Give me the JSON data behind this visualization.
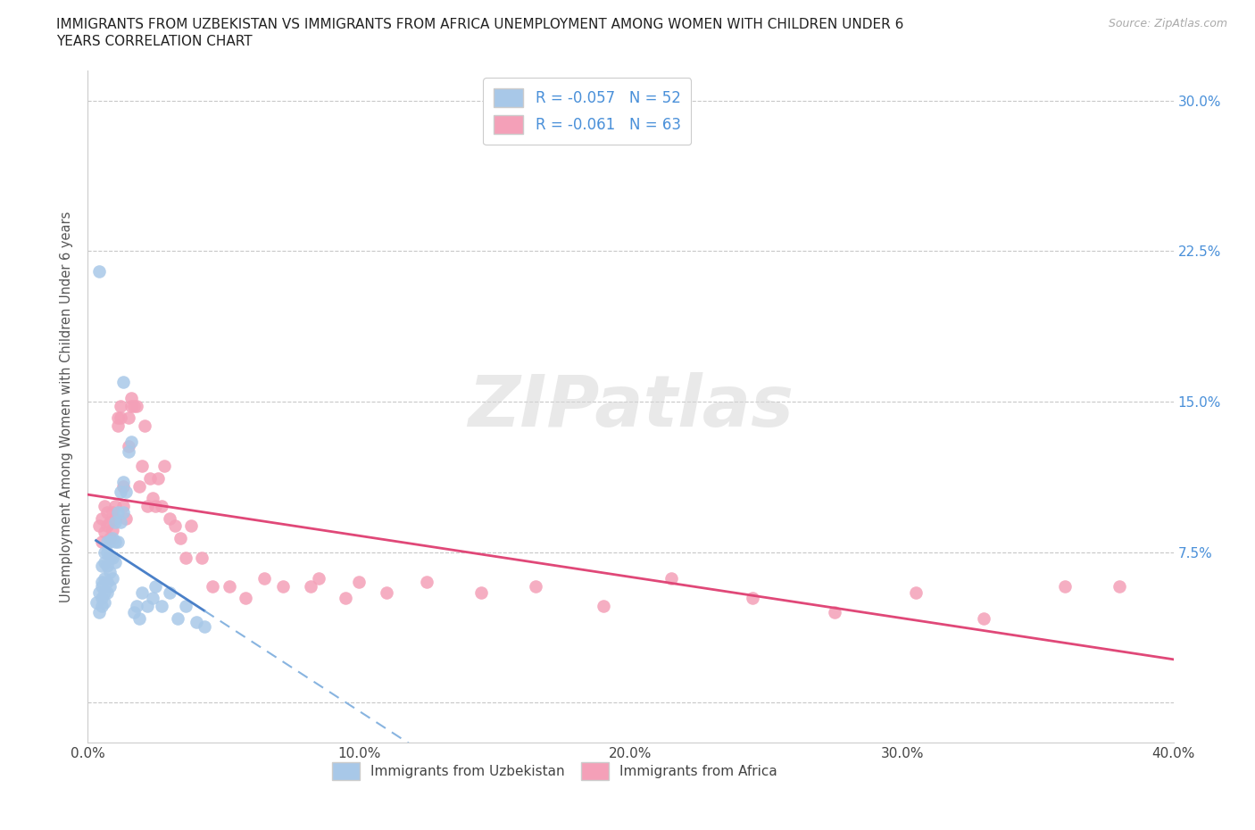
{
  "title_line1": "IMMIGRANTS FROM UZBEKISTAN VS IMMIGRANTS FROM AFRICA UNEMPLOYMENT AMONG WOMEN WITH CHILDREN UNDER 6",
  "title_line2": "YEARS CORRELATION CHART",
  "source_text": "Source: ZipAtlas.com",
  "ylabel": "Unemployment Among Women with Children Under 6 years",
  "watermark": "ZIPatlas",
  "legend_uzbekistan_label": "Immigrants from Uzbekistan",
  "legend_africa_label": "Immigrants from Africa",
  "R_uzbekistan": -0.057,
  "N_uzbekistan": 52,
  "R_africa": -0.061,
  "N_africa": 63,
  "color_uzbekistan": "#a8c8e8",
  "color_africa": "#f4a0b8",
  "color_uzbekistan_line_solid": "#4a80c8",
  "color_uzbekistan_line_dashed": "#88b4e0",
  "color_africa_line": "#e04878",
  "background_color": "#ffffff",
  "grid_color": "#c8c8c8",
  "xlim": [
    0.0,
    0.4
  ],
  "ylim": [
    -0.02,
    0.315
  ],
  "yticks": [
    0.0,
    0.075,
    0.15,
    0.225,
    0.3
  ],
  "ytick_labels_right": [
    "",
    "7.5%",
    "15.0%",
    "22.5%",
    "30.0%"
  ],
  "xticks": [
    0.0,
    0.1,
    0.2,
    0.3,
    0.4
  ],
  "xtick_labels": [
    "0.0%",
    "10.0%",
    "20.0%",
    "30.0%",
    "40.0%"
  ],
  "uzbekistan_x": [
    0.003,
    0.004,
    0.004,
    0.005,
    0.005,
    0.005,
    0.005,
    0.005,
    0.006,
    0.006,
    0.006,
    0.006,
    0.006,
    0.007,
    0.007,
    0.007,
    0.007,
    0.007,
    0.008,
    0.008,
    0.008,
    0.008,
    0.009,
    0.009,
    0.009,
    0.01,
    0.01,
    0.01,
    0.011,
    0.011,
    0.012,
    0.012,
    0.013,
    0.013,
    0.014,
    0.015,
    0.016,
    0.017,
    0.018,
    0.019,
    0.02,
    0.022,
    0.024,
    0.025,
    0.027,
    0.03,
    0.033,
    0.036,
    0.04,
    0.043,
    0.004,
    0.013
  ],
  "uzbekistan_y": [
    0.05,
    0.045,
    0.055,
    0.048,
    0.052,
    0.058,
    0.06,
    0.068,
    0.05,
    0.055,
    0.062,
    0.07,
    0.075,
    0.055,
    0.06,
    0.068,
    0.075,
    0.08,
    0.058,
    0.065,
    0.072,
    0.08,
    0.062,
    0.072,
    0.082,
    0.07,
    0.08,
    0.09,
    0.08,
    0.095,
    0.09,
    0.105,
    0.095,
    0.11,
    0.105,
    0.125,
    0.13,
    0.045,
    0.048,
    0.042,
    0.055,
    0.048,
    0.052,
    0.058,
    0.048,
    0.055,
    0.042,
    0.048,
    0.04,
    0.038,
    0.215,
    0.16
  ],
  "africa_x": [
    0.004,
    0.005,
    0.005,
    0.006,
    0.006,
    0.007,
    0.007,
    0.008,
    0.008,
    0.009,
    0.009,
    0.01,
    0.01,
    0.011,
    0.011,
    0.012,
    0.012,
    0.013,
    0.013,
    0.014,
    0.015,
    0.015,
    0.016,
    0.016,
    0.017,
    0.018,
    0.019,
    0.02,
    0.021,
    0.022,
    0.023,
    0.024,
    0.025,
    0.026,
    0.027,
    0.028,
    0.03,
    0.032,
    0.034,
    0.036,
    0.038,
    0.042,
    0.046,
    0.052,
    0.058,
    0.065,
    0.072,
    0.082,
    0.095,
    0.11,
    0.125,
    0.145,
    0.165,
    0.19,
    0.215,
    0.245,
    0.275,
    0.305,
    0.33,
    0.36,
    0.085,
    0.1,
    0.38
  ],
  "africa_y": [
    0.088,
    0.092,
    0.08,
    0.085,
    0.098,
    0.088,
    0.095,
    0.082,
    0.09,
    0.086,
    0.095,
    0.092,
    0.098,
    0.138,
    0.142,
    0.142,
    0.148,
    0.098,
    0.108,
    0.092,
    0.128,
    0.142,
    0.148,
    0.152,
    0.148,
    0.148,
    0.108,
    0.118,
    0.138,
    0.098,
    0.112,
    0.102,
    0.098,
    0.112,
    0.098,
    0.118,
    0.092,
    0.088,
    0.082,
    0.072,
    0.088,
    0.072,
    0.058,
    0.058,
    0.052,
    0.062,
    0.058,
    0.058,
    0.052,
    0.055,
    0.06,
    0.055,
    0.058,
    0.048,
    0.062,
    0.052,
    0.045,
    0.055,
    0.042,
    0.058,
    0.062,
    0.06,
    0.058
  ]
}
